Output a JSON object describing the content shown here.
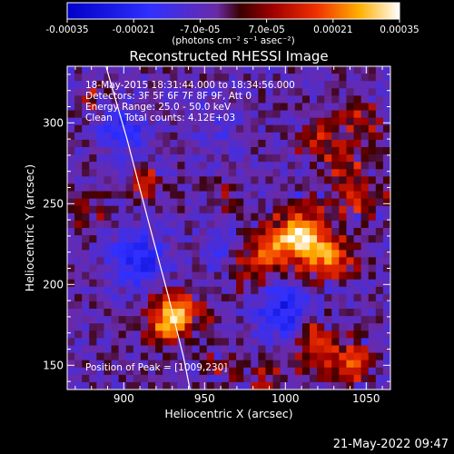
{
  "chart_data": {
    "type": "heatmap",
    "title": "Reconstructed RHESSI Image",
    "xlabel": "Heliocentric X (arcsec)",
    "ylabel": "Heliocentric Y (arcsec)",
    "xlim": [
      865,
      1065
    ],
    "ylim": [
      135,
      335
    ],
    "x_ticks": [
      900,
      950,
      1000,
      1050
    ],
    "y_ticks": [
      150,
      200,
      250,
      300
    ],
    "grid": false,
    "colorbar": {
      "range": [
        -0.00035,
        0.00035
      ],
      "tick_values": [
        -0.00035,
        -0.00021,
        -7e-05,
        7e-05,
        0.00021,
        0.00035
      ],
      "tick_labels": [
        "-0.00035",
        "-0.00021",
        "-7.0e-05",
        "7.0e-05",
        "0.00021",
        "0.00035"
      ],
      "unit_label": "(photons cm⁻² s⁻¹ asec⁻²)",
      "placement": "top"
    },
    "annotations": [
      "18-May-2015 18:31:44.000 to 18:34:56.000",
      "Detectors: 3F 5F 6F 7F 8F 9F, Att 0",
      "Energy Range: 25.0 - 50.0 keV",
      "Clean    Total counts: 4.12E+03"
    ],
    "peak_label": "Position of Peak = [1009,230]",
    "peak": [
      1009,
      230
    ],
    "sources": [
      {
        "x": 1010,
        "y": 229,
        "sigma": 11,
        "amp": 1.0
      },
      {
        "x": 1028,
        "y": 214,
        "sigma": 9,
        "amp": 0.6
      },
      {
        "x": 990,
        "y": 222,
        "sigma": 8,
        "amp": 0.45
      },
      {
        "x": 980,
        "y": 210,
        "sigma": 10,
        "amp": 0.35
      },
      {
        "x": 933,
        "y": 183,
        "sigma": 9,
        "amp": 0.85
      },
      {
        "x": 925,
        "y": 172,
        "sigma": 7,
        "amp": 0.5
      },
      {
        "x": 1020,
        "y": 162,
        "sigma": 9,
        "amp": 0.6
      },
      {
        "x": 1040,
        "y": 150,
        "sigma": 8,
        "amp": 0.55
      },
      {
        "x": 1045,
        "y": 255,
        "sigma": 9,
        "amp": 0.45
      },
      {
        "x": 1035,
        "y": 275,
        "sigma": 8,
        "amp": 0.35
      },
      {
        "x": 1045,
        "y": 300,
        "sigma": 9,
        "amp": 0.3
      },
      {
        "x": 1020,
        "y": 290,
        "sigma": 8,
        "amp": 0.3
      },
      {
        "x": 913,
        "y": 263,
        "sigma": 6,
        "amp": 0.55
      },
      {
        "x": 880,
        "y": 315,
        "sigma": 6,
        "amp": 0.25
      },
      {
        "x": 960,
        "y": 255,
        "sigma": 6,
        "amp": 0.2
      },
      {
        "x": 985,
        "y": 140,
        "sigma": 7,
        "amp": 0.35
      },
      {
        "x": 960,
        "y": 150,
        "sigma": 6,
        "amp": 0.25
      },
      {
        "x": 880,
        "y": 245,
        "sigma": 7,
        "amp": 0.25
      }
    ],
    "negatives": [
      {
        "x": 900,
        "y": 295,
        "sigma": 10,
        "amp": 0.35
      },
      {
        "x": 910,
        "y": 215,
        "sigma": 12,
        "amp": 0.4
      },
      {
        "x": 998,
        "y": 185,
        "sigma": 12,
        "amp": 0.45
      },
      {
        "x": 960,
        "y": 220,
        "sigma": 9,
        "amp": 0.2
      },
      {
        "x": 955,
        "y": 300,
        "sigma": 11,
        "amp": 0.15
      }
    ],
    "limb_curve": [
      {
        "x": 889,
        "y": 335
      },
      {
        "x": 902,
        "y": 290
      },
      {
        "x": 915,
        "y": 240
      },
      {
        "x": 927,
        "y": 195
      },
      {
        "x": 937,
        "y": 155
      },
      {
        "x": 941,
        "y": 135
      }
    ]
  },
  "footer": {
    "timestamp": "21-May-2022 09:47"
  }
}
